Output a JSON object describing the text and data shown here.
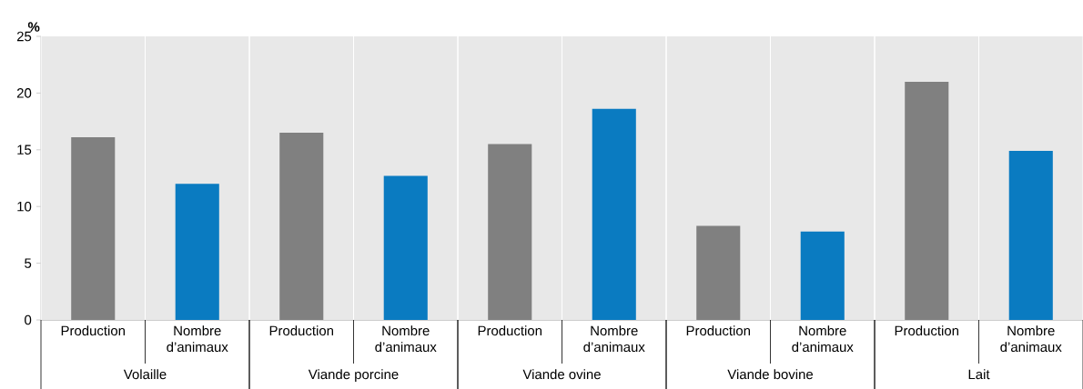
{
  "chart_data": {
    "type": "bar",
    "ylabel": "%",
    "categories": [
      "Volaille",
      "Viande porcine",
      "Viande ovine",
      "Viande bovine",
      "Lait"
    ],
    "series": [
      {
        "name": "Production",
        "color": "#808080",
        "values": [
          16.1,
          16.5,
          15.5,
          8.3,
          21.0
        ]
      },
      {
        "name": "Nombre d’animaux",
        "color": "#0a7bc1",
        "values": [
          12.0,
          12.7,
          18.6,
          7.8,
          14.9
        ]
      }
    ],
    "ylim": [
      0,
      25
    ],
    "yticks": [
      0,
      5,
      10,
      15,
      20,
      25
    ],
    "grid": "x"
  }
}
